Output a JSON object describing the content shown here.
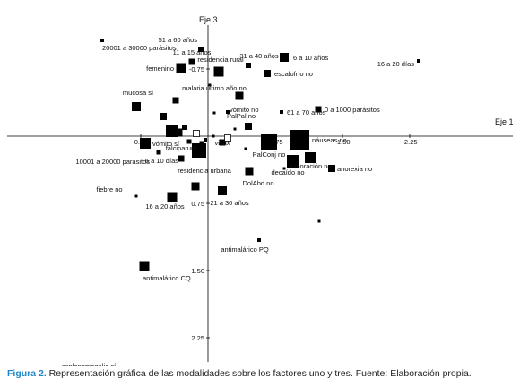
{
  "caption": {
    "figure_label": "Figura 2.",
    "text": " Representación gráfica de las modalidades sobre los factores uno y tres. Fuente: Elaboración propia."
  },
  "chart_data": {
    "type": "scatter",
    "xlabel": "Eje 1",
    "ylabel": "Eje 3",
    "x_axis_inverted": true,
    "y_axis_inverted": true,
    "xlim": [
      1.2,
      -2.4
    ],
    "ylim": [
      -1.15,
      2.78
    ],
    "x_ticks": [
      {
        "value": 0.75,
        "label": "0.75"
      },
      {
        "value": -0.75,
        "label": "-0.75"
      },
      {
        "value": -1.5,
        "label": "-1.50"
      },
      {
        "value": -2.25,
        "label": "-2.25"
      }
    ],
    "y_ticks": [
      {
        "value": -0.75,
        "label": "-0.75"
      },
      {
        "value": 0.75,
        "label": "0.75"
      },
      {
        "value": 1.5,
        "label": "1.50"
      },
      {
        "value": 2.25,
        "label": "2.25"
      }
    ],
    "marker_color": "#000000",
    "points": [
      {
        "label": "20001 a 30000 parásitos",
        "x": 1.18,
        "y": -1.07,
        "size": 4
      },
      {
        "label": "51 a 60 años",
        "x": 0.08,
        "y": -0.97,
        "size": 6
      },
      {
        "label": "6 a 10 años",
        "x": -0.85,
        "y": -0.88,
        "size": 10
      },
      {
        "label": "11 a 15 años",
        "x": 0.18,
        "y": -0.83,
        "size": 7
      },
      {
        "label": "femenino",
        "x": 0.3,
        "y": -0.76,
        "size": 11
      },
      {
        "label": "residencia rural",
        "x": -0.12,
        "y": -0.72,
        "size": 11
      },
      {
        "label": "31 a 40 años",
        "x": -0.45,
        "y": -0.79,
        "size": 6
      },
      {
        "label": "escalofrío no",
        "x": -0.66,
        "y": -0.7,
        "size": 8
      },
      {
        "label": "16 a 20 días",
        "x": -2.35,
        "y": -0.84,
        "size": 4
      },
      {
        "label": "malaria último año no",
        "x": -0.35,
        "y": -0.45,
        "size": 9
      },
      {
        "label": "mucosa sí",
        "x": 0.8,
        "y": -0.33,
        "size": 10
      },
      {
        "label": "61 a 70 años",
        "x": -0.82,
        "y": -0.27,
        "size": 4
      },
      {
        "label": "0 a 1000 parásitos",
        "x": -1.23,
        "y": -0.3,
        "size": 7
      },
      {
        "label": "vómito no",
        "x": -0.22,
        "y": -0.27,
        "size": 4
      },
      {
        "label": "PalPal no",
        "x": -0.45,
        "y": -0.11,
        "size": 8
      },
      {
        "label": "vómito sí",
        "x": 0.7,
        "y": 0.08,
        "size": 12
      },
      {
        "label": "falciparum",
        "x": 0.1,
        "y": 0.16,
        "size": 16
      },
      {
        "label": "vivax",
        "x": -0.16,
        "y": 0.07,
        "size": 7
      },
      {
        "label": "PalConj no",
        "x": -0.68,
        "y": 0.07,
        "size": 18
      },
      {
        "label": "náuseas no",
        "x": -1.02,
        "y": 0.04,
        "size": 22
      },
      {
        "label": "10001 a 20000 parásitos",
        "x": 0.55,
        "y": 0.18,
        "size": 5
      },
      {
        "label": "6 a 10 días",
        "x": 0.3,
        "y": 0.25,
        "size": 7
      },
      {
        "label": "decaído no",
        "x": -0.95,
        "y": 0.28,
        "size": 14
      },
      {
        "label": "sudoración no",
        "x": -1.14,
        "y": 0.24,
        "size": 12
      },
      {
        "label": "anorexia no",
        "x": -1.38,
        "y": 0.36,
        "size": 8
      },
      {
        "label": "residencia urbana",
        "x": 0.14,
        "y": 0.56,
        "size": 9
      },
      {
        "label": "DolAbd no",
        "x": -0.46,
        "y": 0.39,
        "size": 9
      },
      {
        "label": "fiebre no",
        "x": 0.8,
        "y": 0.67,
        "size": 3
      },
      {
        "label": "16 a 20 años",
        "x": 0.4,
        "y": 0.68,
        "size": 11
      },
      {
        "label": "21 a 30 años",
        "x": -0.16,
        "y": 0.61,
        "size": 10
      },
      {
        "label": "antimalárico PQ",
        "x": -0.57,
        "y": 1.16,
        "size": 4
      },
      {
        "label": "antimalárico CQ",
        "x": 0.71,
        "y": 1.45,
        "size": 11
      },
      {
        "label": "esplenomegalia sí",
        "x": 1.21,
        "y": 2.71,
        "size": 13
      }
    ],
    "unlabeled_points": [
      {
        "x": 0.5,
        "y": -0.22,
        "size": 8,
        "shape": "square"
      },
      {
        "x": 0.4,
        "y": -0.06,
        "size": 14,
        "shape": "square"
      },
      {
        "x": 0.33,
        "y": -0.04,
        "size": 9,
        "shape": "square"
      },
      {
        "x": 0.36,
        "y": -0.4,
        "size": 7,
        "shape": "square"
      },
      {
        "x": 0.26,
        "y": -0.1,
        "size": 6,
        "shape": "square"
      },
      {
        "x": 0.13,
        "y": -0.03,
        "size": 7,
        "shape": "hollow"
      },
      {
        "x": 0.03,
        "y": 0.04,
        "size": 4,
        "shape": "square"
      },
      {
        "x": -0.06,
        "y": 0.0,
        "size": 3,
        "shape": "square"
      },
      {
        "x": -0.02,
        "y": -0.57,
        "size": 3,
        "shape": "square"
      },
      {
        "x": -0.07,
        "y": -0.26,
        "size": 3,
        "shape": "square"
      },
      {
        "x": -0.3,
        "y": -0.08,
        "size": 3,
        "shape": "square"
      },
      {
        "x": -0.22,
        "y": 0.02,
        "size": 7,
        "shape": "hollow"
      },
      {
        "x": 0.21,
        "y": 0.06,
        "size": 5,
        "shape": "square"
      },
      {
        "x": 0.07,
        "y": 0.08,
        "size": 5,
        "shape": "square"
      },
      {
        "x": -0.42,
        "y": 0.14,
        "size": 3,
        "shape": "square"
      },
      {
        "x": -0.85,
        "y": 0.36,
        "size": 3,
        "shape": "square"
      },
      {
        "x": -1.24,
        "y": 0.95,
        "size": 3,
        "shape": "square"
      }
    ]
  }
}
